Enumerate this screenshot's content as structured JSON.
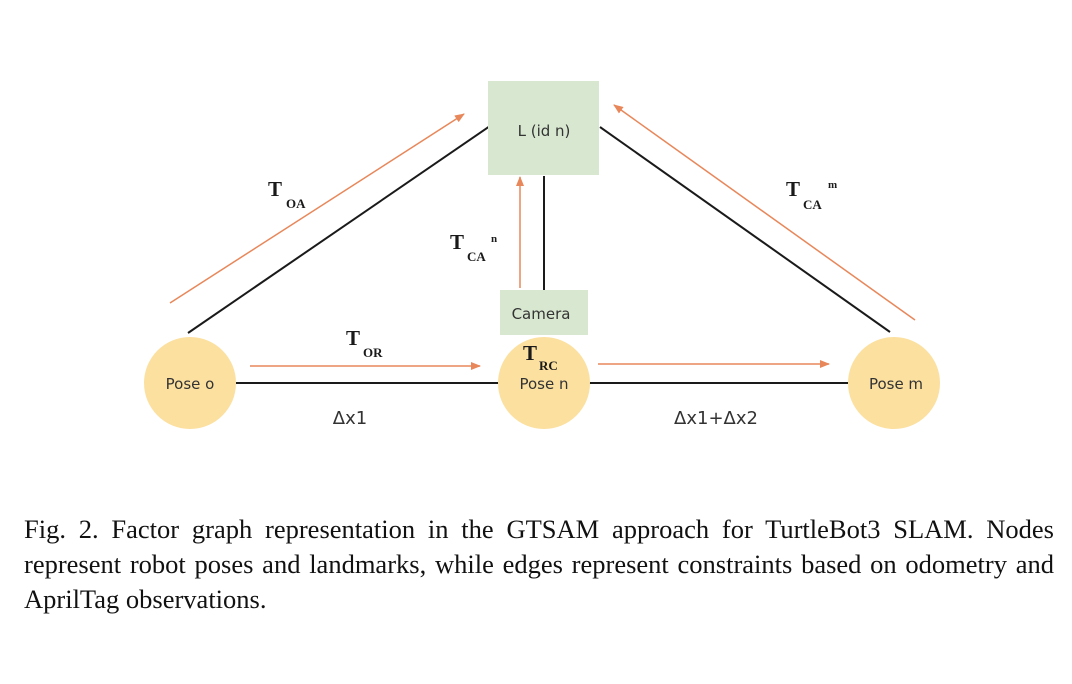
{
  "colors": {
    "pose_fill": "#fbe0a0",
    "landmark_fill": "#d8e8d0",
    "camera_fill": "#d8e8d0",
    "edge": "#1a1a1a",
    "arrow": "#e8875a"
  },
  "nodes": {
    "pose_o": "Pose o",
    "pose_n": "Pose n",
    "pose_m": "Pose m",
    "landmark": "L (id n)",
    "camera": "Camera"
  },
  "labels": {
    "t_oa": {
      "main": "T",
      "sub": "OA",
      "sup": ""
    },
    "t_ca_n": {
      "main": "T",
      "sub": "CA",
      "sup": "n"
    },
    "t_ca_m": {
      "main": "T",
      "sub": "CA",
      "sup": "m"
    },
    "t_or": {
      "main": "T",
      "sub": "OR",
      "sup": ""
    },
    "t_rc": {
      "main": "T",
      "sub": "RC",
      "sup": ""
    },
    "delta_1": "Δx1",
    "delta_12": "Δx1+Δx2"
  },
  "caption": "Fig. 2.  Factor graph representation in the GTSAM approach for TurtleBot3 SLAM. Nodes represent robot poses and landmarks, while edges represent constraints based on odometry and AprilTag observations."
}
